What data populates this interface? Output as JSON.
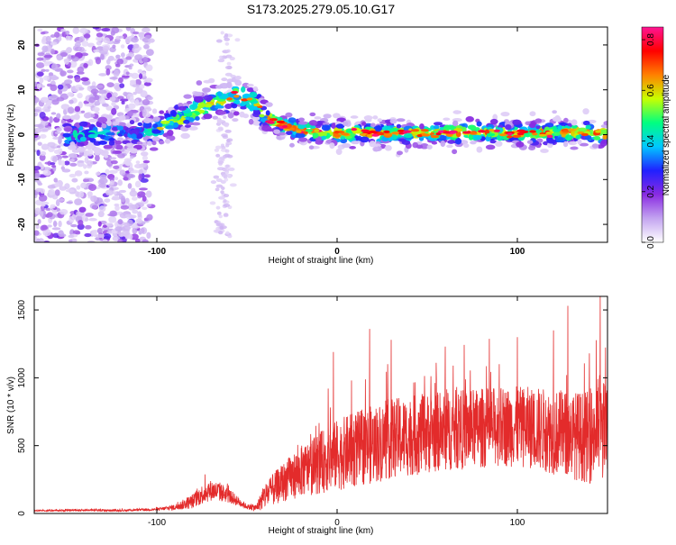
{
  "chart_data": [
    {
      "type": "heatmap",
      "title": "S173.2025.279.05.10.G17",
      "xlabel": "Height of straight line (km)",
      "ylabel": "Frequency (Hz)",
      "xlim": [
        -168,
        150
      ],
      "ylim": [
        -24,
        24
      ],
      "xticks": [
        -100,
        0,
        100
      ],
      "yticks": [
        -20,
        -10,
        0,
        10,
        20
      ],
      "colorbar": {
        "label": "Normalized spectral amplitude",
        "range": [
          0.0,
          0.85
        ],
        "ticks": [
          "0.0",
          "0.2",
          "0.4",
          "0.6",
          "0.8"
        ],
        "colors": [
          "#ffffff",
          "#c3a4f0",
          "#8a2be2",
          "#2020ff",
          "#00c8ff",
          "#00ff80",
          "#c8ff00",
          "#ff8000",
          "#ff0000",
          "#ff1493"
        ]
      },
      "ridge": {
        "x": [
          -160,
          -140,
          -120,
          -100,
          -90,
          -80,
          -70,
          -60,
          -55,
          -50,
          -45,
          -40,
          -35,
          -30,
          -20,
          -10,
          0,
          20,
          40,
          60,
          80,
          100,
          120,
          130,
          140,
          145,
          150
        ],
        "freq": [
          0,
          0,
          0,
          1,
          3,
          5,
          7,
          8,
          9,
          8,
          7,
          4,
          3,
          2,
          1,
          0.6,
          0.4,
          0.3,
          0.3,
          0.4,
          0.5,
          0.3,
          0.3,
          0.6,
          0.6,
          0.2,
          0
        ]
      }
    },
    {
      "type": "line",
      "xlabel": "Height of straight line (km)",
      "ylabel": "SNR (10 * v/v)",
      "xlim": [
        -168,
        150
      ],
      "ylim": [
        0,
        1600
      ],
      "xticks": [
        -100,
        0,
        100
      ],
      "yticks": [
        0,
        500,
        1000,
        1500
      ],
      "series": [
        {
          "name": "SNR",
          "color": "#e32b2b",
          "x": [
            -168,
            -140,
            -120,
            -100,
            -90,
            -80,
            -75,
            -70,
            -65,
            -60,
            -55,
            -50,
            -45,
            -40,
            -30,
            -20,
            -10,
            0,
            10,
            20,
            30,
            40,
            50,
            60,
            70,
            80,
            90,
            100,
            110,
            120,
            130,
            140,
            145,
            150
          ],
          "y": [
            20,
            25,
            22,
            30,
            45,
            90,
            140,
            170,
            160,
            130,
            90,
            50,
            40,
            130,
            230,
            310,
            370,
            430,
            470,
            510,
            550,
            570,
            590,
            610,
            620,
            630,
            640,
            640,
            630,
            600,
            580,
            560,
            640,
            580
          ],
          "noise": [
            5,
            8,
            8,
            10,
            25,
            60,
            80,
            85,
            80,
            60,
            40,
            20,
            30,
            110,
            160,
            210,
            250,
            290,
            310,
            320,
            330,
            330,
            330,
            330,
            330,
            330,
            330,
            330,
            340,
            350,
            360,
            380,
            420,
            420
          ],
          "peaks": [
            [
              -2,
              1190
            ],
            [
              18,
              1360
            ],
            [
              30,
              1280
            ],
            [
              28,
              1100
            ],
            [
              60,
              1230
            ],
            [
              100,
              1300
            ],
            [
              120,
              1350
            ],
            [
              128,
              1530
            ],
            [
              146,
              1600
            ],
            [
              -5,
              920
            ],
            [
              8,
              980
            ],
            [
              55,
              1110
            ],
            [
              90,
              1100
            ],
            [
              140,
              1180
            ]
          ]
        }
      ]
    }
  ]
}
